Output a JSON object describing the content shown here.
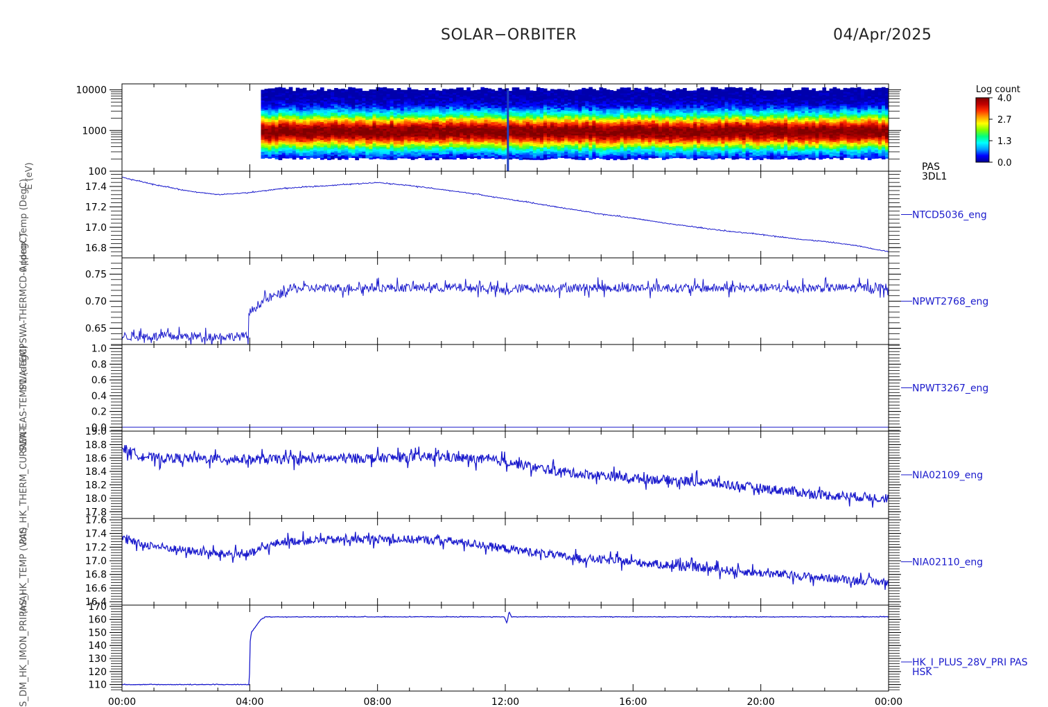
{
  "header": {
    "title": "SOLAR−ORBITER",
    "date": "04/Apr/2025"
  },
  "colorbar": {
    "title": "Log count",
    "ticks": [
      "4.0",
      "2.7",
      "1.3",
      "0.0"
    ],
    "range": [
      0.0,
      4.0
    ],
    "colors": [
      "#000090",
      "#0000ff",
      "#00a0ff",
      "#00ffff",
      "#00ff80",
      "#80ff00",
      "#ffff00",
      "#ffa000",
      "#ff3000",
      "#c00000",
      "#800000"
    ]
  },
  "time_axis": {
    "range_hours": [
      0,
      24
    ],
    "ticks": [
      "00:00",
      "04:00",
      "08:00",
      "12:00",
      "16:00",
      "20:00",
      "00:00"
    ]
  },
  "chart_data": [
    {
      "type": "heatmap",
      "ylabel": "E (eV)",
      "yscale": "log",
      "ylim": [
        100,
        14000
      ],
      "yticks": [
        100,
        1000,
        10000
      ],
      "ytick_labels": [
        "100",
        "1000",
        "10000"
      ],
      "right_label": [
        "PAS",
        "3DL1"
      ],
      "data_start_hour": 4.35,
      "peak_energy_ev": 900,
      "log_count_range": [
        0.0,
        4.0
      ]
    },
    {
      "type": "line",
      "ylabel": "Approx Temp (DegC)",
      "right_label": "NTCD5036_eng",
      "ylim": [
        16.7,
        17.55
      ],
      "yticks": [
        16.8,
        17.0,
        17.2,
        17.4
      ],
      "ytick_labels": [
        "16.8",
        "17.0",
        "17.2",
        "17.4"
      ],
      "x": [
        0,
        1,
        2,
        3,
        4,
        5,
        6,
        7,
        8,
        9,
        10,
        11,
        12,
        13,
        14,
        15,
        16,
        17,
        18,
        19,
        20,
        21,
        22,
        23,
        24
      ],
      "y": [
        17.49,
        17.42,
        17.36,
        17.32,
        17.34,
        17.38,
        17.4,
        17.42,
        17.44,
        17.41,
        17.37,
        17.33,
        17.28,
        17.23,
        17.18,
        17.13,
        17.09,
        17.04,
        17.0,
        16.96,
        16.93,
        16.89,
        16.86,
        16.82,
        16.76
      ],
      "noise": 0.004
    },
    {
      "type": "line",
      "ylabel": "SWA-TEMPSWA-THERMCD-0 (degC)",
      "right_label": "NPWT2768_eng",
      "ylim": [
        0.62,
        0.78
      ],
      "yticks": [
        0.65,
        0.7,
        0.75
      ],
      "ytick_labels": [
        "0.65",
        "0.70",
        "0.75"
      ],
      "x": [
        0,
        3.95,
        3.96,
        4.05,
        4.3,
        4.6,
        4.9,
        5.3,
        6,
        8,
        10,
        11.5,
        12,
        12.5,
        15,
        18,
        21,
        24
      ],
      "y": [
        0.635,
        0.635,
        0.675,
        0.682,
        0.695,
        0.706,
        0.712,
        0.723,
        0.724,
        0.725,
        0.725,
        0.724,
        0.718,
        0.724,
        0.725,
        0.724,
        0.724,
        0.725
      ],
      "noise": 0.008
    },
    {
      "type": "line",
      "ylabel": "SWA-EAS-TEMP1 (degC)",
      "right_label": "NPWT3267_eng",
      "ylim": [
        -0.05,
        1.05
      ],
      "yticks": [
        0.0,
        0.2,
        0.4,
        0.6,
        0.8,
        1.0
      ],
      "ytick_labels": [
        "0.0",
        "0.2",
        "0.4",
        "0.6",
        "0.8",
        "1.0"
      ],
      "x": [
        0,
        24
      ],
      "y": [
        0.0,
        0.0
      ],
      "noise": 0.0
    },
    {
      "type": "line",
      "ylabel": "PAS_HK_THERM_CURRENT",
      "right_label": "NIA02109_eng",
      "ylim": [
        17.7,
        19.0
      ],
      "yticks": [
        17.8,
        18.0,
        18.2,
        18.4,
        18.6,
        18.8,
        19.0
      ],
      "ytick_labels": [
        "17.8",
        "18.0",
        "18.2",
        "18.4",
        "18.6",
        "18.8",
        "19.0"
      ],
      "x": [
        0,
        0.5,
        1,
        4,
        5,
        8,
        10,
        12,
        13,
        14,
        16,
        18,
        20,
        22,
        24
      ],
      "y": [
        18.75,
        18.65,
        18.6,
        18.58,
        18.58,
        18.6,
        18.62,
        18.55,
        18.45,
        18.38,
        18.3,
        18.25,
        18.15,
        18.05,
        18.0
      ],
      "noise": 0.07
    },
    {
      "type": "line",
      "ylabel": "PAS_HK_TEMP (Volt)",
      "right_label": "NIA02110_eng",
      "ylim": [
        16.35,
        17.62
      ],
      "yticks": [
        16.4,
        16.6,
        16.8,
        17.0,
        17.2,
        17.4,
        17.6
      ],
      "ytick_labels": [
        "16.4",
        "16.6",
        "16.8",
        "17.0",
        "17.2",
        "17.4",
        "17.6"
      ],
      "x": [
        0,
        0.5,
        1,
        2,
        3,
        4,
        4.5,
        5,
        6,
        8,
        10,
        11,
        12,
        13,
        14,
        16,
        18,
        20,
        22,
        24
      ],
      "y": [
        17.32,
        17.25,
        17.22,
        17.15,
        17.1,
        17.1,
        17.2,
        17.28,
        17.3,
        17.32,
        17.3,
        17.25,
        17.18,
        17.12,
        17.05,
        16.98,
        16.9,
        16.82,
        16.75,
        16.68
      ],
      "noise": 0.06
    },
    {
      "type": "line",
      "ylabel": "PAS_DM_HK_IMON_PRI (mA)",
      "right_label": [
        "HK_I_PLUS_28V_PRI PAS",
        "HSK"
      ],
      "ylim": [
        105,
        171
      ],
      "yticks": [
        110,
        120,
        130,
        140,
        150,
        160,
        170
      ],
      "ytick_labels": [
        "110",
        "120",
        "130",
        "140",
        "150",
        "160",
        "170"
      ],
      "x": [
        0,
        3.99,
        4.0,
        4.05,
        4.1,
        4.2,
        4.35,
        4.5,
        11.97,
        12.05,
        12.12,
        12.2,
        24
      ],
      "y": [
        110,
        110,
        140,
        150,
        152,
        155,
        160,
        162,
        162,
        157,
        166,
        162,
        162
      ],
      "noise": 0.2
    }
  ]
}
